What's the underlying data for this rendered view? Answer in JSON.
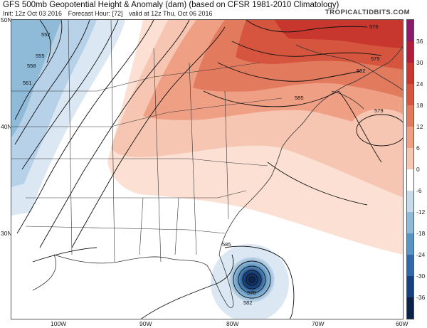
{
  "header": {
    "title": "GFS 500mb Geopotential Height & Anomaly (dam) (based on CFSR 1981-2010 Climatology)",
    "init": "Init: 12z Oct 03 2016",
    "forecast_hour": "Forecast Hour: [72]",
    "valid": "valid at 12z Thu, Oct 06 2016",
    "brand": "TROPICALTIDBITS.COM"
  },
  "axes": {
    "lat_labels": [
      "50N",
      "40N",
      "30N"
    ],
    "lon_labels": [
      "100W",
      "90W",
      "80W",
      "70W",
      "60W"
    ]
  },
  "colorbar": {
    "labels": [
      "36",
      "30",
      "24",
      "18",
      "12",
      "6",
      "0",
      "-6",
      "-12",
      "-18",
      "-24",
      "-30",
      "-36"
    ],
    "colors": [
      "#8b1a6b",
      "#b01e3b",
      "#c8372d",
      "#d6553e",
      "#e27a5e",
      "#ee9f84",
      "#f6c6b2",
      "#ffffff",
      "#c7dbeb",
      "#8fbbd9",
      "#5b94c3",
      "#3068a8",
      "#16417e",
      "#0c2148"
    ]
  },
  "contour_labels": [
    "552",
    "555",
    "558",
    "561",
    "576",
    "579",
    "582",
    "585",
    "579",
    "585",
    "579",
    "582"
  ],
  "colors": {
    "land": "#ffffff",
    "ocean": "#ffffff",
    "border": "#333333",
    "contour": "#111111"
  }
}
